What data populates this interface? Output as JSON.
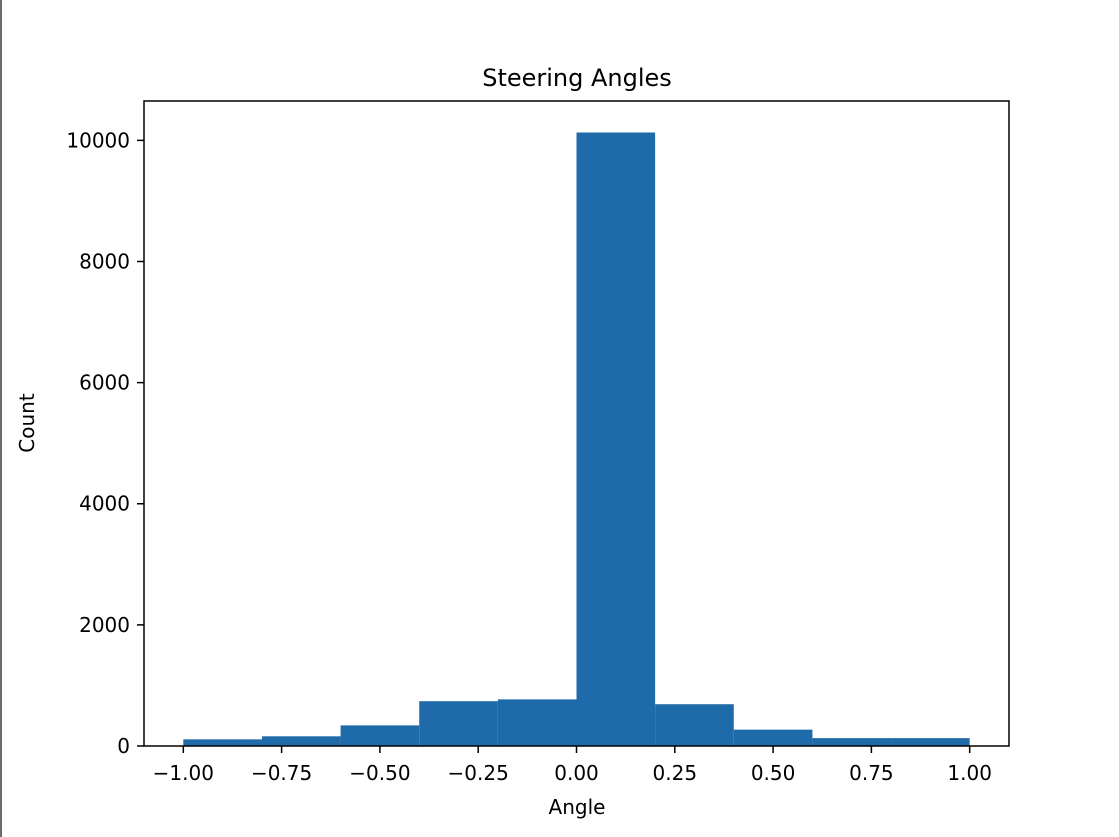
{
  "chart_data": {
    "type": "bar",
    "title": "Steering Angles",
    "xlabel": "Angle",
    "ylabel": "Count",
    "bin_edges": [
      -1.0,
      -0.8,
      -0.6,
      -0.4,
      -0.2,
      0.0,
      0.2,
      0.4,
      0.6,
      0.8,
      1.0
    ],
    "values": [
      110,
      160,
      340,
      740,
      770,
      10130,
      690,
      270,
      130,
      130
    ],
    "xlim": [
      -1.1,
      1.1
    ],
    "ylim": [
      0,
      10650
    ],
    "x_ticks": [
      -1.0,
      -0.75,
      -0.5,
      -0.25,
      0.0,
      0.25,
      0.5,
      0.75,
      1.0
    ],
    "x_tick_labels": [
      "−1.00",
      "−0.75",
      "−0.50",
      "−0.25",
      "0.00",
      "0.25",
      "0.50",
      "0.75",
      "1.00"
    ],
    "y_ticks": [
      0,
      2000,
      4000,
      6000,
      8000,
      10000
    ],
    "y_tick_labels": [
      "0",
      "2000",
      "4000",
      "6000",
      "8000",
      "10000"
    ],
    "grid": false,
    "bar_color": "#1f6aa8"
  }
}
